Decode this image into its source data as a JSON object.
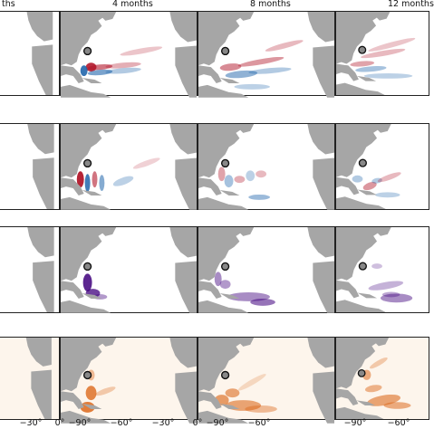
{
  "columns": [
    {
      "title": "ths"
    },
    {
      "title": "4 months"
    },
    {
      "title": "8 months"
    },
    {
      "title": "12 months"
    }
  ],
  "x_ticks": [
    {
      "label": "−30°"
    },
    {
      "label": "0°"
    },
    {
      "label": "−90°"
    },
    {
      "label": "−60°"
    },
    {
      "label": "−30°"
    },
    {
      "label": "0°"
    },
    {
      "label": "−90°"
    },
    {
      "label": "−60°"
    },
    {
      "label": "−90°"
    },
    {
      "label": "−60°"
    }
  ],
  "rows": [
    {
      "colormap": "diverging-blue-red",
      "neg": "#2166ac",
      "pos": "#b2182b"
    },
    {
      "colormap": "diverging-blue-red",
      "neg": "#2166ac",
      "pos": "#b2182b"
    },
    {
      "colormap": "sequential-purple",
      "neg": "#3f007d",
      "pos": "#3f007d"
    },
    {
      "colormap": "sequential-orange",
      "neg": "#d95f0e",
      "pos": "#d95f0e"
    }
  ],
  "land_color": "#a6a6a6",
  "marker": "circle-marker"
}
